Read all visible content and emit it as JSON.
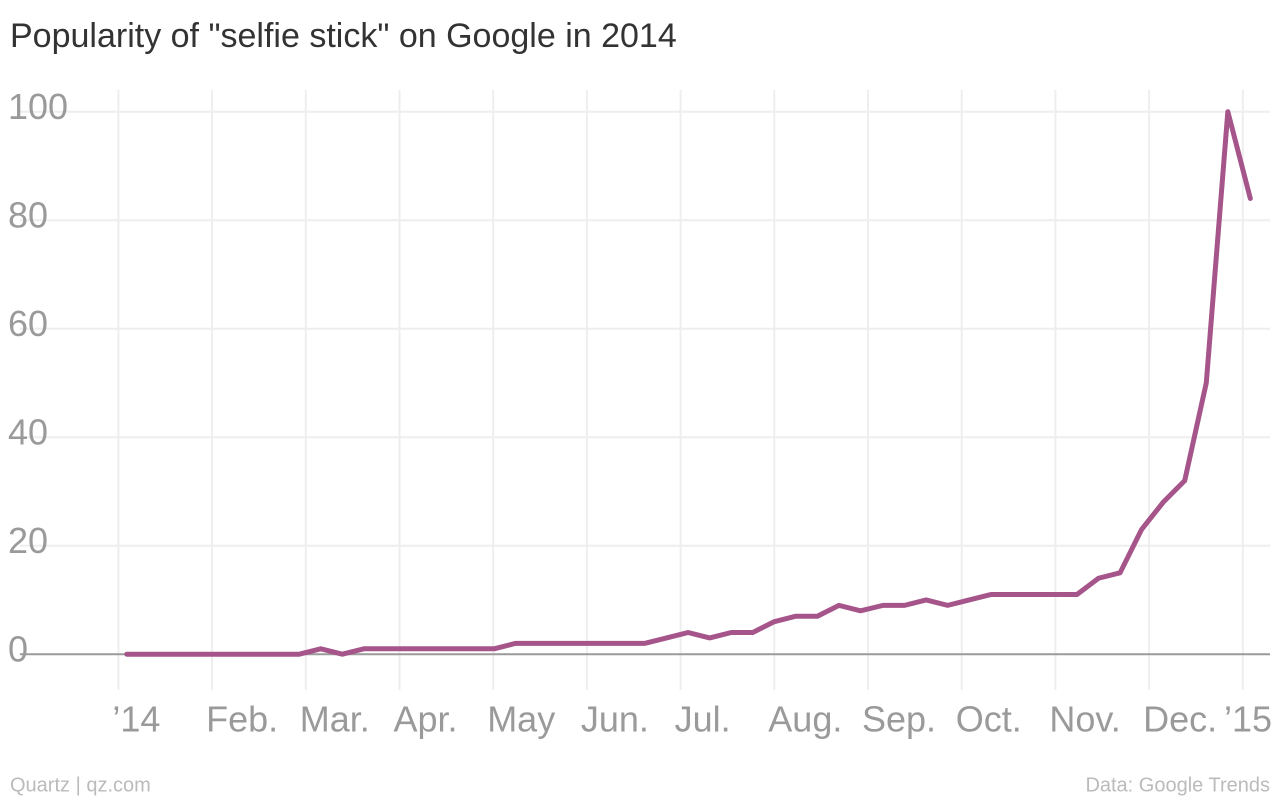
{
  "chart_data": {
    "type": "line",
    "title": "Popularity of \"selfie stick\" on Google in 2014",
    "source": "Data: Google Trends",
    "credit": "Quartz | qz.com",
    "x": [
      0.09,
      0.32,
      0.55,
      0.78,
      1.01,
      1.24,
      1.47,
      1.7,
      1.93,
      2.16,
      2.39,
      2.62,
      2.85,
      3.08,
      3.31,
      3.54,
      3.78,
      4.01,
      4.24,
      4.47,
      4.7,
      4.93,
      5.16,
      5.39,
      5.62,
      5.85,
      6.08,
      6.31,
      6.54,
      6.77,
      7.0,
      7.23,
      7.46,
      7.69,
      7.92,
      8.16,
      8.39,
      8.62,
      8.85,
      9.08,
      9.31,
      9.54,
      9.77,
      10.0,
      10.23,
      10.46,
      10.69,
      10.92,
      11.15,
      11.38,
      11.61,
      11.84,
      12.08
    ],
    "series": [
      {
        "name": "selfie stick",
        "color": "#a5558a",
        "values": [
          0,
          0,
          0,
          0,
          0,
          0,
          0,
          0,
          0,
          1,
          0,
          1,
          1,
          1,
          1,
          1,
          1,
          1,
          2,
          2,
          2,
          2,
          2,
          2,
          2,
          3,
          4,
          3,
          4,
          4,
          6,
          7,
          7,
          9,
          8,
          9,
          9,
          10,
          9,
          10,
          11,
          11,
          11,
          11,
          11,
          14,
          15,
          23,
          28,
          32,
          50,
          100,
          84
        ]
      }
    ],
    "xlim": [
      -1.05,
      12.29
    ],
    "xticks": [
      {
        "value": 0,
        "label": "’14"
      },
      {
        "value": 1,
        "label": "Feb."
      },
      {
        "value": 2,
        "label": "Mar."
      },
      {
        "value": 3,
        "label": "Apr."
      },
      {
        "value": 4,
        "label": "May"
      },
      {
        "value": 5,
        "label": "Jun."
      },
      {
        "value": 6,
        "label": "Jul."
      },
      {
        "value": 7,
        "label": "Aug."
      },
      {
        "value": 8,
        "label": "Sep."
      },
      {
        "value": 9,
        "label": "Oct."
      },
      {
        "value": 10,
        "label": "Nov."
      },
      {
        "value": 11,
        "label": "Dec."
      },
      {
        "value": 12,
        "label": "’15"
      }
    ],
    "ylim": [
      -6.6,
      104
    ],
    "yticks": [
      0,
      20,
      40,
      60,
      80,
      100
    ],
    "grid": true
  }
}
